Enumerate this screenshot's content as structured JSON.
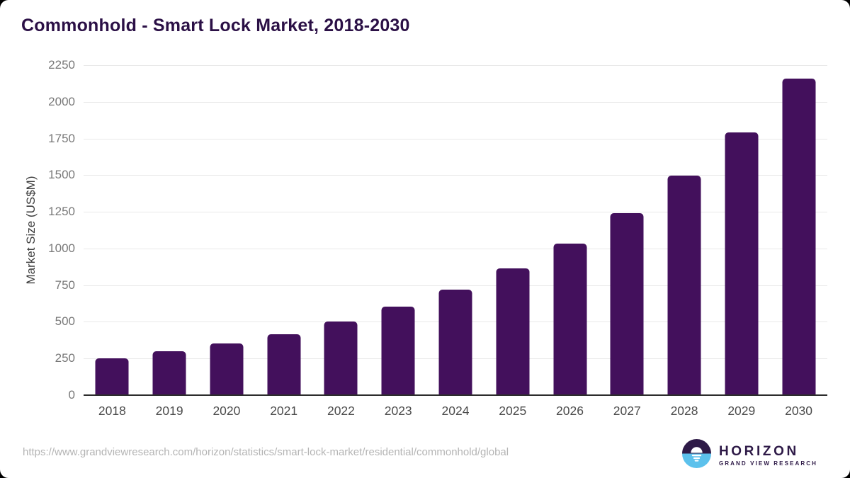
{
  "page": {
    "title": "Commonhold - Smart Lock Market, 2018-2030",
    "source_url": "https://www.grandviewresearch.com/horizon/statistics/smart-lock-market/residential/commonhold/global",
    "logo": {
      "brand": "HORIZON",
      "sub_brand": "GRAND VIEW RESEARCH"
    }
  },
  "colors": {
    "bar": "#43105c",
    "title": "#2b1046",
    "grid": "#e9e9e9",
    "axis_line": "#2d2d2d",
    "tick_label": "#787878",
    "x_label": "#4b4b4b",
    "url": "#b4b4b4",
    "logo_purple": "#2e1a47",
    "logo_blue": "#5cc1ec"
  },
  "chart_data": {
    "type": "bar",
    "title": "Commonhold - Smart Lock Market, 2018-2030",
    "categories": [
      "2018",
      "2019",
      "2020",
      "2021",
      "2022",
      "2023",
      "2024",
      "2025",
      "2026",
      "2027",
      "2028",
      "2029",
      "2030"
    ],
    "values": [
      250,
      298,
      351,
      417,
      500,
      602,
      720,
      862,
      1035,
      1242,
      1495,
      1793,
      2160
    ],
    "xlabel": "",
    "ylabel": "Market Size (US$M)",
    "ylim": [
      0,
      2250
    ],
    "ytick_step": 250,
    "grid": true,
    "legend_position": "none",
    "bar_color": "#43105c"
  }
}
